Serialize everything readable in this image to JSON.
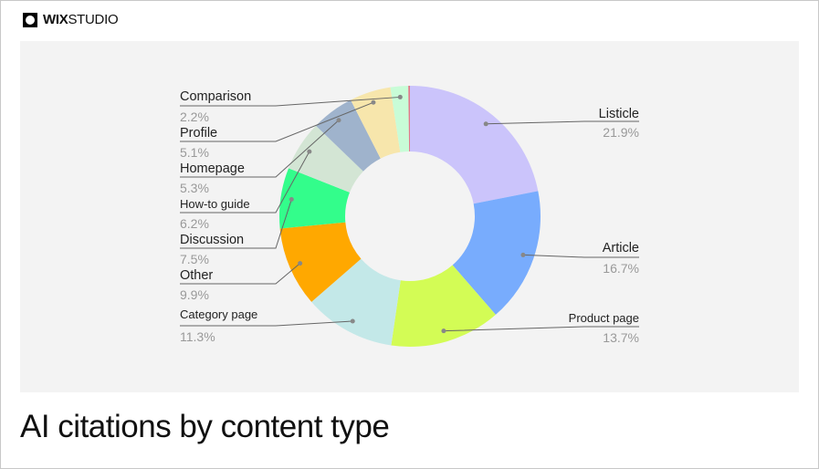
{
  "brand": {
    "logo_bold": "WIX",
    "logo_light": "STUDIO"
  },
  "title": "AI citations by content type",
  "chart_data": {
    "type": "pie",
    "donut": true,
    "title": "AI citations by content type",
    "unit": "%",
    "slices": [
      {
        "label": "Listicle",
        "value": 21.9,
        "display": "21.9%",
        "color": "#cbc4fb"
      },
      {
        "label": "Article",
        "value": 16.7,
        "display": "16.7%",
        "color": "#78acfd"
      },
      {
        "label": "Product page",
        "value": 13.7,
        "display": "13.7%",
        "color": "#d3fc55"
      },
      {
        "label": "Category page",
        "value": 11.3,
        "display": "11.3%",
        "color": "#c3e8e8"
      },
      {
        "label": "Other",
        "value": 9.9,
        "display": "9.9%",
        "color": "#ffa800"
      },
      {
        "label": "Discussion",
        "value": 7.5,
        "display": "7.5%",
        "color": "#33fd8b"
      },
      {
        "label": "How-to guide",
        "value": 6.2,
        "display": "6.2%",
        "color": "#d3e5d4"
      },
      {
        "label": "Homepage",
        "value": 5.3,
        "display": "5.3%",
        "color": "#9fb3cc"
      },
      {
        "label": "Profile",
        "value": 5.1,
        "display": "5.1%",
        "color": "#f7e6ac"
      },
      {
        "label": "Comparison",
        "value": 2.2,
        "display": "2.2%",
        "color": "#c8fcd7"
      },
      {
        "label": "",
        "value": 0.2,
        "display": "",
        "color": "#e07a8a"
      }
    ]
  }
}
